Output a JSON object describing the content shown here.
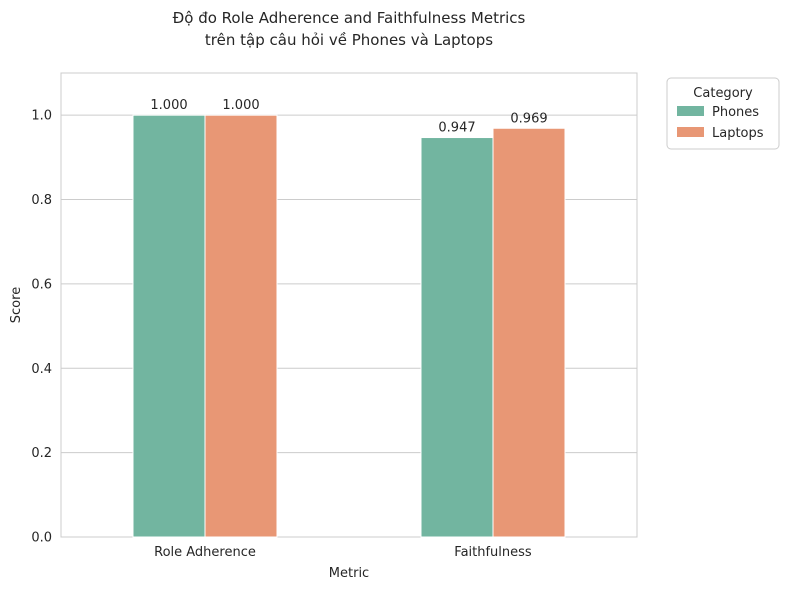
{
  "chart_data": {
    "type": "bar",
    "title": "Độ đo Role Adherence and Faithfulness Metrics\ntrên tập câu hỏi về Phones và Laptops",
    "xlabel": "Metric",
    "ylabel": "Score",
    "categories": [
      "Role Adherence",
      "Faithfulness"
    ],
    "series": [
      {
        "name": "Phones",
        "values": [
          1.0,
          0.947
        ],
        "labels": [
          "1.000",
          "0.947"
        ],
        "color": "#72b5a0"
      },
      {
        "name": "Laptops",
        "values": [
          1.0,
          0.969
        ],
        "labels": [
          "1.000",
          "0.969"
        ],
        "color": "#e89775"
      }
    ],
    "ylim": [
      0,
      1.1
    ],
    "yticks": [
      0.0,
      0.2,
      0.4,
      0.6,
      0.8,
      1.0
    ],
    "ytick_labels": [
      "0.0",
      "0.2",
      "0.4",
      "0.6",
      "0.8",
      "1.0"
    ],
    "grid": true,
    "legend": {
      "title": "Category",
      "placement": "outside-top-right"
    }
  }
}
